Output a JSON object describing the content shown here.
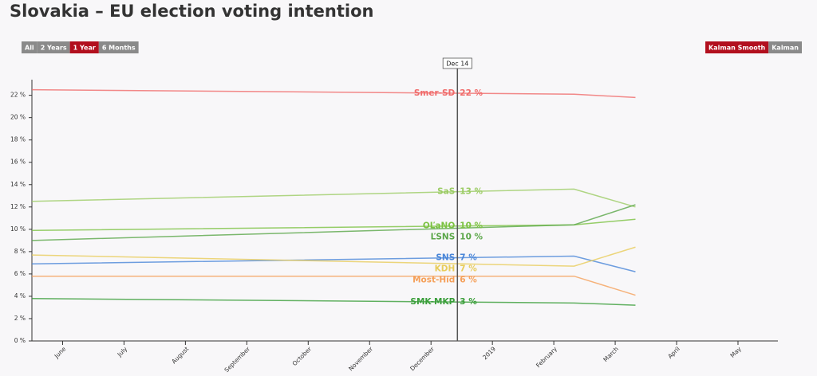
{
  "chart_data": {
    "type": "line",
    "title": "Slovakia – EU election voting intention",
    "range_buttons": [
      "All",
      "2 Years",
      "1 Year",
      "6 Months"
    ],
    "range_active": 2,
    "smooth_buttons": [
      "Kalman Smooth",
      "Kalman"
    ],
    "smooth_active": 0,
    "marker": {
      "label": "Dec 14",
      "x": 6.43
    },
    "x": [
      -0.5,
      8.33,
      9.33
    ],
    "xlim": [
      -0.5,
      11.65
    ],
    "xticks": [
      {
        "value": 0,
        "label": "June"
      },
      {
        "value": 1,
        "label": "July"
      },
      {
        "value": 2,
        "label": "August"
      },
      {
        "value": 3,
        "label": "September"
      },
      {
        "value": 4,
        "label": "October"
      },
      {
        "value": 5,
        "label": "November"
      },
      {
        "value": 6,
        "label": "December"
      },
      {
        "value": 7,
        "label": "2019"
      },
      {
        "value": 8,
        "label": "February"
      },
      {
        "value": 9,
        "label": "March"
      },
      {
        "value": 10,
        "label": "April"
      },
      {
        "value": 11,
        "label": "May"
      }
    ],
    "ylim": [
      0,
      23.4
    ],
    "yticks": [
      {
        "value": 0,
        "label": "0 %"
      },
      {
        "value": 2,
        "label": "2 %"
      },
      {
        "value": 4,
        "label": "4 %"
      },
      {
        "value": 6,
        "label": "6 %"
      },
      {
        "value": 8,
        "label": "8 %"
      },
      {
        "value": 10,
        "label": "10 %"
      },
      {
        "value": 12,
        "label": "12 %"
      },
      {
        "value": 14,
        "label": "14 %"
      },
      {
        "value": 16,
        "label": "16 %"
      },
      {
        "value": 18,
        "label": "18 %"
      },
      {
        "value": 20,
        "label": "20 %"
      },
      {
        "value": 22,
        "label": "22 %"
      }
    ],
    "series": [
      {
        "name": "Smer-SD",
        "color": "#f06b6b",
        "values": [
          22.5,
          22.1,
          21.8
        ],
        "readout": "22 %"
      },
      {
        "name": "SaS",
        "color": "#9ccc65",
        "values": [
          12.5,
          13.6,
          12.0
        ],
        "readout": "13 %"
      },
      {
        "name": "OĽaNO",
        "color": "#7cc242",
        "values": [
          9.9,
          10.4,
          10.9
        ],
        "readout": "10 %"
      },
      {
        "name": "ĽSNS",
        "color": "#5aa648",
        "values": [
          9.0,
          10.4,
          12.2
        ],
        "readout": "10 %"
      },
      {
        "name": "SNS",
        "color": "#4a86d8",
        "values": [
          6.9,
          7.6,
          6.2
        ],
        "readout": "7 %"
      },
      {
        "name": "KDH",
        "color": "#e8cc5a",
        "values": [
          7.7,
          6.7,
          8.4
        ],
        "readout": "7 %"
      },
      {
        "name": "Most-Híd",
        "color": "#f5a05a",
        "values": [
          5.8,
          5.8,
          4.1
        ],
        "readout": "6 %"
      },
      {
        "name": "SMK-MKP",
        "color": "#3a9e3a",
        "values": [
          3.8,
          3.4,
          3.2
        ],
        "readout": "3 %"
      }
    ]
  }
}
